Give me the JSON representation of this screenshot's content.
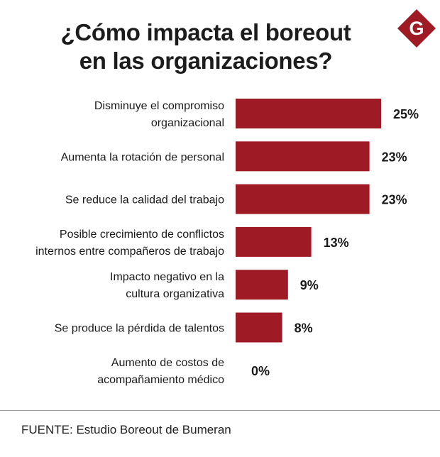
{
  "title_lines": [
    "¿Cómo impacta el boreout",
    "en las organizaciones?"
  ],
  "logo": {
    "letter": "G",
    "color": "#9e1b25"
  },
  "source": "FUENTE: Estudio Boreout de Bumeran",
  "colors": {
    "bar": "#9e1b25",
    "text": "#1a1a1a"
  },
  "chart_data": {
    "type": "bar",
    "orientation": "horizontal",
    "title": "¿Cómo impacta el boreout en las organizaciones?",
    "categories": [
      [
        "Disminuye el compromiso",
        "organizacional"
      ],
      [
        "Aumenta la rotación de personal"
      ],
      [
        "Se reduce la calidad del trabajo"
      ],
      [
        "Posible crecimiento de conflictos",
        "internos entre compañeros de trabajo"
      ],
      [
        "Impacto negativo en la",
        "cultura organizativa"
      ],
      [
        "Se produce la pérdida de talentos"
      ],
      [
        "Aumento de costos de",
        "acompañamiento médico"
      ]
    ],
    "values": [
      25,
      23,
      23,
      13,
      9,
      8,
      0
    ],
    "value_labels": [
      "25%",
      "23%",
      "23%",
      "13%",
      "9%",
      "8%",
      "0%"
    ],
    "unit": "%",
    "xlim": [
      0,
      25
    ],
    "grid": false,
    "legend": "none"
  }
}
